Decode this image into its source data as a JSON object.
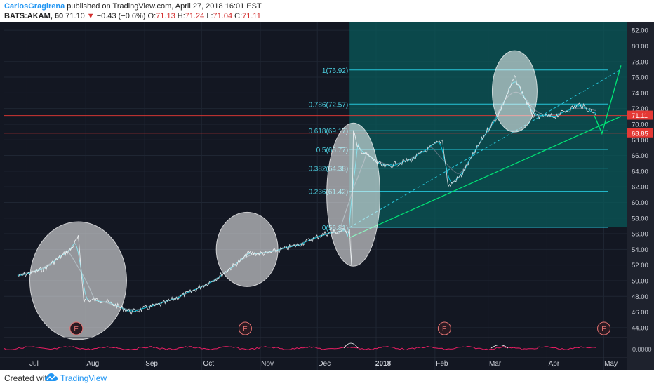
{
  "header": {
    "author": "CarlosGragirena",
    "published_text": "published on TradingView.com, April 27, 2018 16:01 EST",
    "symbol": "BATS:AKAM, 60",
    "last": "71.10",
    "change_arrow": "▼",
    "change": "−0.43 (−0.6%)",
    "o_label": "O:",
    "o_val": "71.13",
    "h_label": "H:",
    "h_val": "71.24",
    "l_label": "L:",
    "l_val": "71.04",
    "c_label": "C:",
    "c_val": "71.11"
  },
  "footer": {
    "created_with": "Created with",
    "brand": "TradingView"
  },
  "colors": {
    "bg": "#131722",
    "fib_zone": "#0a5a5a",
    "fib_line": "#26c6da",
    "fib_text": "#4dd0e1",
    "price": "#cfd8dc",
    "ma1": "#00bcd4",
    "ma2": "#546e7a",
    "trend": "#00e676",
    "hline_red": "#e53935",
    "ellipse": "#ffffff",
    "macd": "#e91e63"
  },
  "chart_data": {
    "type": "line",
    "title": "BATS:AKAM, 60",
    "ylim": [
      43,
      83
    ],
    "price_axis_ticks": [
      "82.00",
      "80.00",
      "78.00",
      "76.00",
      "74.00",
      "72.00",
      "70.00",
      "68.00",
      "66.00",
      "64.00",
      "62.00",
      "60.00",
      "58.00",
      "56.00",
      "54.00",
      "52.00",
      "50.00",
      "48.00",
      "46.00",
      "44.00"
    ],
    "time_axis_ticks": [
      "Jul",
      "Aug",
      "Sep",
      "Oct",
      "Nov",
      "Dec",
      "2018",
      "Feb",
      "Mar",
      "Apr",
      "May"
    ],
    "series": [
      {
        "x": [
          "2017-06-26",
          "2017-07-10",
          "2017-07-24",
          "2017-07-28",
          "2017-07-31",
          "2017-08-10",
          "2017-08-25",
          "2017-09-10",
          "2017-09-25",
          "2017-10-10",
          "2017-10-24",
          "2017-10-25",
          "2017-11-05",
          "2017-11-20",
          "2017-12-05",
          "2017-12-18",
          "2017-12-19",
          "2017-12-20",
          "2017-12-22",
          "2018-01-05",
          "2018-01-20",
          "2018-02-05",
          "2018-02-08",
          "2018-02-15",
          "2018-02-28",
          "2018-03-06",
          "2018-03-15",
          "2018-03-25",
          "2018-04-05",
          "2018-04-18",
          "2018-04-26",
          "2018-04-27"
        ],
        "values": [
          50.5,
          51.5,
          54.0,
          55.5,
          47.5,
          47.5,
          46.0,
          47.0,
          48.5,
          50.5,
          53.0,
          53.5,
          53.5,
          54.5,
          56.0,
          56.5,
          52.0,
          69.5,
          67.0,
          64.5,
          65.5,
          68.0,
          62.0,
          63.5,
          69.0,
          71.0,
          76.0,
          71.0,
          71.0,
          72.5,
          71.5,
          71.1
        ]
      }
    ],
    "fibonacci": [
      {
        "label": "0(56.81)",
        "value": 56.81
      },
      {
        "label": "0.236(61.42)",
        "value": 61.42
      },
      {
        "label": "0.382(64.38)",
        "value": 64.38
      },
      {
        "label": "0.5(66.77)",
        "value": 66.77
      },
      {
        "label": "0.618(69.17)",
        "value": 69.17
      },
      {
        "label": "0.786(72.57)",
        "value": 72.57
      },
      {
        "label": "1(76.92)",
        "value": 76.92
      }
    ],
    "horizontal_lines": [
      71.11,
      68.85
    ],
    "price_tags": [
      {
        "label": "71.11",
        "value": 71.11
      },
      {
        "label": "68.85",
        "value": 68.85
      }
    ],
    "trendline": {
      "from": [
        "2017-12-18",
        55.5
      ],
      "to": [
        "2018-05-10",
        71.0
      ]
    },
    "dashed_trendline": {
      "from": [
        "2017-12-18",
        56.81
      ],
      "to": [
        "2018-05-10",
        77.0
      ]
    },
    "projection": {
      "x": [
        "2018-04-26",
        "2018-04-30",
        "2018-05-10"
      ],
      "y": [
        71.1,
        68.8,
        77.5
      ]
    },
    "earnings_markers": [
      {
        "label": "E",
        "date": "2017-07-27"
      },
      {
        "label": "E",
        "date": "2017-10-24"
      },
      {
        "label": "E",
        "date": "2018-02-06"
      },
      {
        "label": "E",
        "date": "2018-05-01"
      }
    ],
    "highlights": [
      {
        "date": "2017-07-28",
        "price": 50.0
      },
      {
        "date": "2017-10-25",
        "price": 54.0
      },
      {
        "date": "2017-12-20",
        "price": 61.0
      },
      {
        "date": "2018-03-15",
        "price": 74.2
      }
    ],
    "macd_axis_tick": "0.0000"
  }
}
